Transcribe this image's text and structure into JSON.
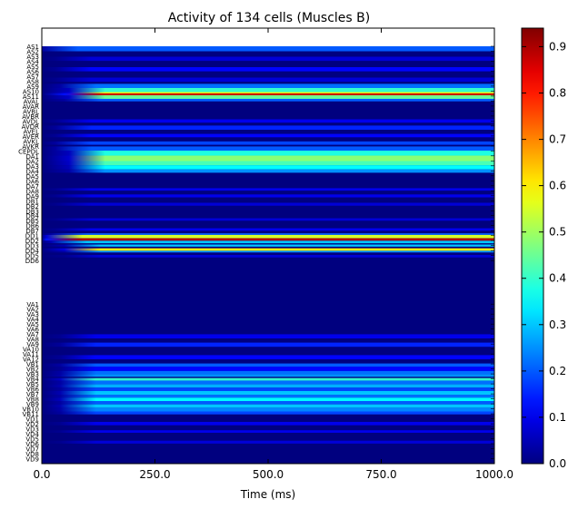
{
  "chart_data": {
    "type": "heatmap",
    "title": "Activity of 134 cells (Muscles B)",
    "xlabel": "Time (ms)",
    "ylabel": "",
    "xlim": [
      0,
      1000
    ],
    "x_ticks": [
      "0.0",
      "250.0",
      "500.0",
      "750.0",
      "1000.0"
    ],
    "x_tick_values": [
      0,
      250,
      500,
      750,
      1000
    ],
    "color_scale": {
      "min": 0.0,
      "max": 0.94,
      "colormap": "jet",
      "ticks": [
        "0.0",
        "0.1",
        "0.2",
        "0.3",
        "0.4",
        "0.5",
        "0.6",
        "0.7",
        "0.8",
        "0.9"
      ],
      "tick_values": [
        0.0,
        0.1,
        0.2,
        0.3,
        0.4,
        0.5,
        0.6,
        0.7,
        0.8,
        0.9
      ]
    },
    "cells_total": 134,
    "y_labels_top": [
      "AS1",
      "AS2",
      "AS3",
      "AS4",
      "AS5",
      "AS6",
      "AS7",
      "AS8",
      "AS9",
      "AS10",
      "AS11",
      "AVAL",
      "AVAR",
      "AVBL",
      "AVBR",
      "AVDL",
      "AVDR",
      "AVEL",
      "AVER",
      "AVKL",
      "AVKR",
      "CEPDL",
      "DA1",
      "DA2",
      "DA3",
      "DA4",
      "DA5",
      "DA6",
      "DA7",
      "DA8",
      "DA9",
      "DB1",
      "DB2",
      "DB3",
      "DB4",
      "DB5",
      "DB6",
      "DB7",
      "DD1",
      "DD2",
      "DD3",
      "DD4",
      "DD5",
      "DD6"
    ],
    "y_labels_bottom": [
      "VA1",
      "VA2",
      "VA3",
      "VA4",
      "VA5",
      "VA6",
      "VA7",
      "VA8",
      "VA9",
      "VA10",
      "VA11",
      "VA12",
      "VB1",
      "VB2",
      "VB3",
      "VB4",
      "VB5",
      "VB6",
      "VB7",
      "VB8",
      "VB9",
      "VB10",
      "VB11",
      "VD1",
      "VD2",
      "VD3",
      "VD4",
      "VD5",
      "VD6",
      "VD7",
      "VD8",
      "VD9"
    ],
    "rows": [
      {
        "start": 0.0,
        "end": 0.012,
        "value": 0.2,
        "onset": 0
      },
      {
        "start": 0.025,
        "end": 0.035,
        "value": 0.08,
        "onset": 30
      },
      {
        "start": 0.05,
        "end": 0.06,
        "value": 0.12,
        "onset": 30
      },
      {
        "start": 0.075,
        "end": 0.085,
        "value": 0.08,
        "onset": 30
      },
      {
        "start": 0.09,
        "end": 0.1,
        "value": 0.22,
        "onset": 40
      },
      {
        "start": 0.1,
        "end": 0.11,
        "value": 0.12,
        "onset": 40
      },
      {
        "start": 0.118,
        "end": 0.128,
        "value": 0.3,
        "onset": 40
      },
      {
        "start": 0.1,
        "end": 0.118,
        "value": 0.35,
        "onset": 30
      },
      {
        "start": 0.1,
        "end": 0.112,
        "value": 0.4,
        "onset": 60
      },
      {
        "start": 0.11,
        "end": 0.118,
        "value": 0.6,
        "onset": 60
      },
      {
        "start": 0.113,
        "end": 0.117,
        "value": 0.88,
        "onset": 50
      },
      {
        "start": 0.118,
        "end": 0.126,
        "value": 0.45,
        "onset": 60
      },
      {
        "start": 0.126,
        "end": 0.132,
        "value": 0.2,
        "onset": 50
      },
      {
        "start": 0.175,
        "end": 0.183,
        "value": 0.1,
        "onset": 30
      },
      {
        "start": 0.19,
        "end": 0.2,
        "value": 0.15,
        "onset": 30
      },
      {
        "start": 0.21,
        "end": 0.218,
        "value": 0.12,
        "onset": 30
      },
      {
        "start": 0.228,
        "end": 0.236,
        "value": 0.18,
        "onset": 30
      },
      {
        "start": 0.24,
        "end": 0.25,
        "value": 0.2,
        "onset": 30
      },
      {
        "start": 0.25,
        "end": 0.262,
        "value": 0.38,
        "onset": 60
      },
      {
        "start": 0.262,
        "end": 0.275,
        "value": 0.48,
        "onset": 60
      },
      {
        "start": 0.275,
        "end": 0.285,
        "value": 0.42,
        "onset": 60
      },
      {
        "start": 0.285,
        "end": 0.295,
        "value": 0.35,
        "onset": 60
      },
      {
        "start": 0.295,
        "end": 0.303,
        "value": 0.25,
        "onset": 60
      },
      {
        "start": 0.34,
        "end": 0.346,
        "value": 0.1,
        "onset": 30
      },
      {
        "start": 0.355,
        "end": 0.362,
        "value": 0.1,
        "onset": 30
      },
      {
        "start": 0.375,
        "end": 0.382,
        "value": 0.08,
        "onset": 30
      },
      {
        "start": 0.412,
        "end": 0.418,
        "value": 0.08,
        "onset": 30
      },
      {
        "start": 0.436,
        "end": 0.442,
        "value": 0.1,
        "onset": 30
      },
      {
        "start": 0.448,
        "end": 0.452,
        "value": 0.2,
        "onset": 20
      },
      {
        "start": 0.452,
        "end": 0.46,
        "value": 0.55,
        "onset": 10
      },
      {
        "start": 0.46,
        "end": 0.466,
        "value": 0.9,
        "onset": 10
      },
      {
        "start": 0.466,
        "end": 0.472,
        "value": 0.3,
        "onset": 20
      },
      {
        "start": 0.475,
        "end": 0.48,
        "value": 0.3,
        "onset": 50
      },
      {
        "start": 0.484,
        "end": 0.49,
        "value": 0.6,
        "onset": 50
      },
      {
        "start": 0.49,
        "end": 0.494,
        "value": 0.25,
        "onset": 50
      },
      {
        "start": 0.5,
        "end": 0.506,
        "value": 0.08,
        "onset": 50
      },
      {
        "start": 0.69,
        "end": 0.7,
        "value": 0.1,
        "onset": 40
      },
      {
        "start": 0.71,
        "end": 0.72,
        "value": 0.15,
        "onset": 40
      },
      {
        "start": 0.74,
        "end": 0.75,
        "value": 0.12,
        "onset": 40
      },
      {
        "start": 0.76,
        "end": 0.768,
        "value": 0.2,
        "onset": 40
      },
      {
        "start": 0.768,
        "end": 0.778,
        "value": 0.12,
        "onset": 40
      },
      {
        "start": 0.778,
        "end": 0.786,
        "value": 0.22,
        "onset": 40
      },
      {
        "start": 0.786,
        "end": 0.792,
        "value": 0.25,
        "onset": 40
      },
      {
        "start": 0.795,
        "end": 0.801,
        "value": 0.4,
        "onset": 40
      },
      {
        "start": 0.801,
        "end": 0.81,
        "value": 0.22,
        "onset": 40
      },
      {
        "start": 0.81,
        "end": 0.818,
        "value": 0.28,
        "onset": 40
      },
      {
        "start": 0.818,
        "end": 0.826,
        "value": 0.18,
        "onset": 40
      },
      {
        "start": 0.826,
        "end": 0.835,
        "value": 0.3,
        "onset": 40
      },
      {
        "start": 0.835,
        "end": 0.842,
        "value": 0.22,
        "onset": 40
      },
      {
        "start": 0.842,
        "end": 0.85,
        "value": 0.35,
        "onset": 40
      },
      {
        "start": 0.85,
        "end": 0.858,
        "value": 0.2,
        "onset": 40
      },
      {
        "start": 0.858,
        "end": 0.866,
        "value": 0.3,
        "onset": 40
      },
      {
        "start": 0.866,
        "end": 0.875,
        "value": 0.24,
        "onset": 40
      },
      {
        "start": 0.875,
        "end": 0.882,
        "value": 0.18,
        "onset": 40
      },
      {
        "start": 0.9,
        "end": 0.908,
        "value": 0.1,
        "onset": 40
      },
      {
        "start": 0.92,
        "end": 0.926,
        "value": 0.1,
        "onset": 40
      },
      {
        "start": 0.945,
        "end": 0.952,
        "value": 0.08,
        "onset": 40
      }
    ],
    "grid": false,
    "legend": "none"
  }
}
